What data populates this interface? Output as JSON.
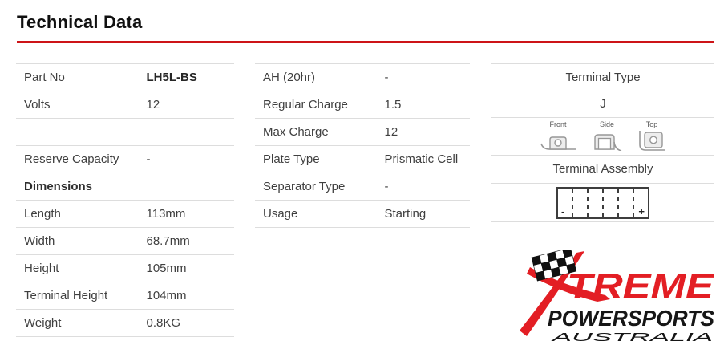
{
  "page": {
    "title": "Technical Data"
  },
  "colors": {
    "rule_red": "#cd1418",
    "brand_red": "#e31e24",
    "table_border": "#dddddd",
    "text": "#3f3f3f"
  },
  "tables": {
    "left": {
      "rows": [
        {
          "label": "Part No",
          "value": "LH5L-BS",
          "value_bold": true
        },
        {
          "label": "Volts",
          "value": "12"
        },
        {
          "type": "spacer"
        },
        {
          "label": "Reserve Capacity",
          "value": "-"
        },
        {
          "type": "section",
          "label": "Dimensions"
        },
        {
          "label": "Length",
          "value": "113mm"
        },
        {
          "label": "Width",
          "value": "68.7mm"
        },
        {
          "label": "Height",
          "value": "105mm"
        },
        {
          "label": "Terminal Height",
          "value": "104mm"
        },
        {
          "label": "Weight",
          "value": "0.8KG"
        }
      ]
    },
    "middle": {
      "rows": [
        {
          "label": "AH (20hr)",
          "value": "-"
        },
        {
          "label": "Regular Charge",
          "value": "1.5"
        },
        {
          "label": "Max Charge",
          "value": "12"
        },
        {
          "label": "Plate Type",
          "value": "Prismatic Cell"
        },
        {
          "label": "Separator Type",
          "value": "-"
        },
        {
          "label": "Usage",
          "value": "Starting"
        }
      ]
    }
  },
  "terminal": {
    "type_heading": "Terminal Type",
    "type_value": "J",
    "views": [
      "Front",
      "Side",
      "Top"
    ],
    "assembly_heading": "Terminal Assembly",
    "assembly": {
      "cells": 6,
      "negative": "-",
      "positive": "+"
    }
  },
  "logo": {
    "treme": "TREME",
    "powersports": "POWERSPORTS",
    "australia": "AUSTRALIA"
  }
}
